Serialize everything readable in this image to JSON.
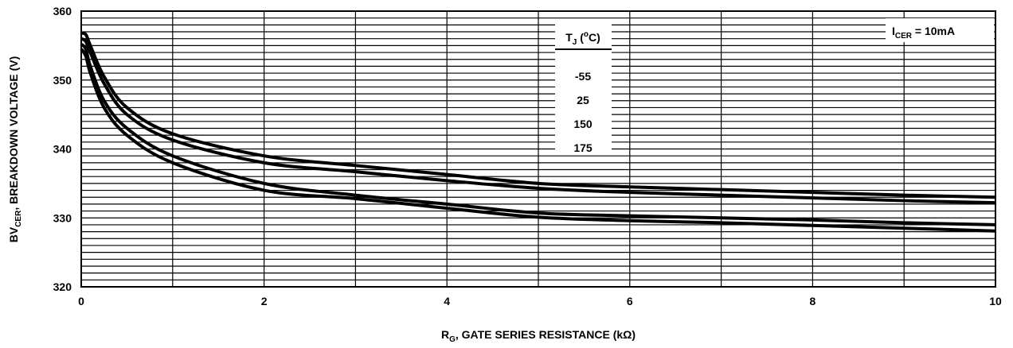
{
  "chart_data": {
    "type": "line",
    "title": "",
    "xlabel": {
      "main": "R",
      "sub": "G",
      "rest": ", GATE SERIES RESISTANCE (kΩ)"
    },
    "ylabel": {
      "main": "BV",
      "sub": "CER",
      "rest": ", BREAKDOWN VOLTAGE (V)"
    },
    "xlim": [
      0,
      10
    ],
    "ylim": [
      320,
      360
    ],
    "x_ticks": [
      0,
      2,
      4,
      6,
      8,
      10
    ],
    "y_ticks": [
      320,
      330,
      340,
      350,
      360
    ],
    "x_minor_step": 1,
    "y_minor_step": 1,
    "grid": true,
    "annotation": {
      "main": "I",
      "sub": "CER",
      "rest": " = 10mA"
    },
    "legend": {
      "title_main": "T",
      "title_sub": "J",
      "title_rest": " (",
      "title_sup": "o",
      "title_end": "C)",
      "entries": [
        "-55",
        "25",
        "150",
        "175"
      ]
    },
    "series": [
      {
        "x": [
          0,
          0.05,
          0.1,
          0.25,
          0.5,
          1,
          2,
          3,
          4,
          5,
          6,
          7,
          8,
          9,
          10
        ],
        "values": [
          356.8,
          356.6,
          355.0,
          350.5,
          346.0,
          342.2,
          339.0,
          337.6,
          336.3,
          335.0,
          334.5,
          334.1,
          333.7,
          333.3,
          333.0
        ]
      },
      {
        "x": [
          0,
          0.05,
          0.1,
          0.25,
          0.5,
          1,
          2,
          3,
          4,
          5,
          6,
          7,
          8,
          9,
          10
        ],
        "values": [
          356.0,
          355.6,
          354.0,
          349.5,
          345.0,
          341.3,
          338.0,
          336.7,
          335.4,
          334.3,
          333.7,
          333.3,
          332.9,
          332.5,
          332.2
        ]
      },
      {
        "x": [
          0,
          0.05,
          0.1,
          0.25,
          0.5,
          1,
          2,
          3,
          4,
          5,
          6,
          7,
          8,
          9,
          10
        ],
        "values": [
          355.2,
          354.5,
          352.0,
          347.0,
          343.0,
          339.0,
          335.0,
          333.3,
          332.0,
          330.7,
          330.3,
          330.0,
          329.7,
          329.3,
          329.0
        ]
      },
      {
        "x": [
          0,
          0.05,
          0.1,
          0.25,
          0.5,
          1,
          2,
          3,
          4,
          5,
          6,
          7,
          8,
          9,
          10
        ],
        "values": [
          354.5,
          353.5,
          351.0,
          346.0,
          342.0,
          338.0,
          334.0,
          332.8,
          331.4,
          330.1,
          329.6,
          329.3,
          328.9,
          328.5,
          328.1
        ]
      }
    ]
  }
}
